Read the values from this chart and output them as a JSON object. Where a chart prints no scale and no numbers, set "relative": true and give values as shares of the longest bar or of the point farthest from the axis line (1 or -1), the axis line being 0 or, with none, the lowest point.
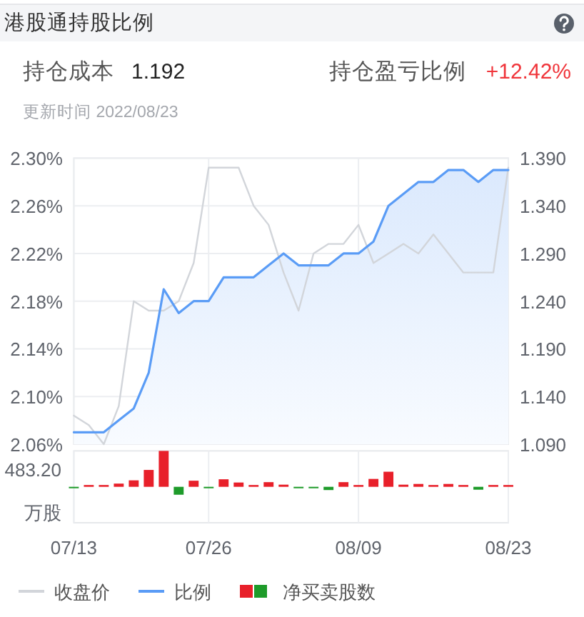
{
  "chart_data": [
    {
      "type": "line",
      "title": "港股通持股比例",
      "subtitle": "更新时间 2022/08/23",
      "annotations": [
        "持仓成本",
        "1.192",
        "持仓盈亏比例",
        "+12.42%"
      ],
      "categories": [
        null,
        null,
        null,
        null,
        null,
        null,
        null,
        null,
        null,
        null,
        null,
        null,
        null,
        null,
        null,
        null,
        null,
        null,
        null,
        null,
        null,
        null,
        null,
        null,
        null,
        null,
        null,
        null,
        null,
        null
      ],
      "series": [
        {
          "name": "收盘价",
          "color": "#d2d5da",
          "axis": "y2",
          "values": [
            1.12,
            1.11,
            1.09,
            1.13,
            1.24,
            1.23,
            1.23,
            1.24,
            1.28,
            1.38,
            1.38,
            1.38,
            1.34,
            1.32,
            1.27,
            1.23,
            1.29,
            1.3,
            1.3,
            1.32,
            1.28,
            1.29,
            1.3,
            1.29,
            1.31,
            1.29,
            1.27,
            1.27,
            1.27,
            1.38
          ]
        },
        {
          "name": "比例",
          "type": "area",
          "color": "#5a9cf6",
          "values": [
            2.07,
            2.07,
            2.07,
            2.08,
            2.09,
            2.12,
            2.19,
            2.17,
            2.18,
            2.18,
            2.2,
            2.2,
            2.2,
            2.21,
            2.22,
            2.21,
            2.21,
            2.21,
            2.22,
            2.22,
            2.23,
            2.26,
            2.27,
            2.28,
            2.28,
            2.29,
            2.29,
            2.28,
            2.29,
            2.29
          ]
        }
      ],
      "ylim": [
        2.06,
        2.3
      ],
      "yticks": [
        {
          "value": 2.06,
          "label": "2.06%"
        },
        {
          "value": 2.1,
          "label": "2.10%"
        },
        {
          "value": 2.14,
          "label": "2.14%"
        },
        {
          "value": 2.18,
          "label": "2.18%"
        },
        {
          "value": 2.22,
          "label": "2.22%"
        },
        {
          "value": 2.26,
          "label": "2.26%"
        },
        {
          "value": 2.3,
          "label": "2.30%"
        }
      ],
      "y2lim": [
        1.09,
        1.39
      ],
      "y2ticks": [
        {
          "value": 1.09,
          "label": "1.090"
        },
        {
          "value": 1.14,
          "label": "1.140"
        },
        {
          "value": 1.19,
          "label": "1.190"
        },
        {
          "value": 1.24,
          "label": "1.240"
        },
        {
          "value": 1.29,
          "label": "1.290"
        },
        {
          "value": 1.34,
          "label": "1.340"
        },
        {
          "value": 1.39,
          "label": "1.390"
        }
      ],
      "grid": true,
      "legend": "bottom",
      "tick_labels": "y"
    },
    {
      "type": "bar",
      "relative": true,
      "ylabel": "万股",
      "annotations": [
        "483.20"
      ],
      "categories": [
        "07/13",
        null,
        null,
        null,
        null,
        null,
        null,
        null,
        null,
        "07/26",
        null,
        null,
        null,
        null,
        null,
        null,
        null,
        null,
        null,
        "08/09",
        null,
        null,
        null,
        null,
        null,
        null,
        null,
        null,
        null,
        "08/23"
      ],
      "series": [
        {
          "name": "净买卖股数",
          "values": [
            -0.04,
            0.05,
            0.05,
            0.09,
            0.18,
            0.47,
            1,
            -0.22,
            0.17,
            -0.04,
            0.21,
            0.12,
            0.05,
            0.13,
            0.06,
            -0.04,
            -0.04,
            -0.09,
            0.13,
            0.05,
            0.22,
            0.42,
            0.06,
            0.08,
            0.05,
            0.08,
            0.05,
            -0.08,
            0.05,
            0.05
          ],
          "colors": [
            "#1e9b2a",
            "#e8202a",
            "#e8202a",
            "#e8202a",
            "#e8202a",
            "#e8202a",
            "#e8202a",
            "#1e9b2a",
            "#e8202a",
            "#1e9b2a",
            "#e8202a",
            "#e8202a",
            "#e8202a",
            "#e8202a",
            "#e8202a",
            "#1e9b2a",
            "#1e9b2a",
            "#1e9b2a",
            "#e8202a",
            "#e8202a",
            "#e8202a",
            "#e8202a",
            "#e8202a",
            "#e8202a",
            "#e8202a",
            "#e8202a",
            "#e8202a",
            "#1e9b2a",
            "#e8202a",
            "#e8202a"
          ]
        }
      ],
      "grid": "x",
      "legend": "bottom",
      "tick_labels": "x"
    }
  ]
}
